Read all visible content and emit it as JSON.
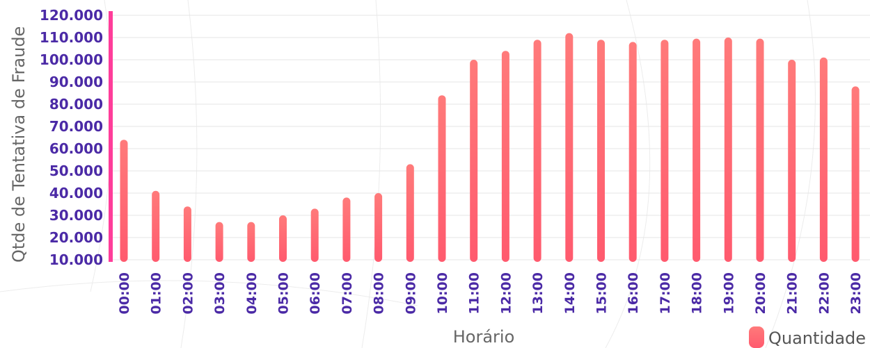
{
  "chart_data": {
    "type": "bar",
    "title": "",
    "xlabel": "Horário",
    "ylabel": "Qtde de Tentativa de Fraude",
    "categories": [
      "00:00",
      "01:00",
      "02:00",
      "03:00",
      "04:00",
      "05:00",
      "06:00",
      "07:00",
      "08:00",
      "09:00",
      "10:00",
      "11:00",
      "12:00",
      "13:00",
      "14:00",
      "15:00",
      "16:00",
      "17:00",
      "18:00",
      "19:00",
      "20:00",
      "21:00",
      "22:00",
      "23:00"
    ],
    "series": [
      {
        "name": "Quantidade",
        "values": [
          64000,
          41000,
          34000,
          27000,
          27000,
          30000,
          33000,
          38000,
          40000,
          53000,
          84000,
          100000,
          104000,
          109000,
          112000,
          109000,
          108000,
          109000,
          109500,
          110000,
          109500,
          100000,
          101000,
          88000
        ]
      }
    ],
    "y_ticks": [
      "10.000",
      "20.000",
      "30.000",
      "40.000",
      "50.000",
      "60.000",
      "70.000",
      "80.000",
      "90.000",
      "100.000",
      "110.000",
      "120.000"
    ],
    "ylim": [
      10000,
      120000
    ],
    "grid": true,
    "legend_position": "bottom-right",
    "colors": {
      "bar_top": "#ff7a7a",
      "bar_bottom": "#ff5a6e",
      "axis_start": "#ff3d9a",
      "axis_end": "#ff8a50",
      "tick_label": "#4b2aa6",
      "grid": "#e6e6e6"
    }
  }
}
